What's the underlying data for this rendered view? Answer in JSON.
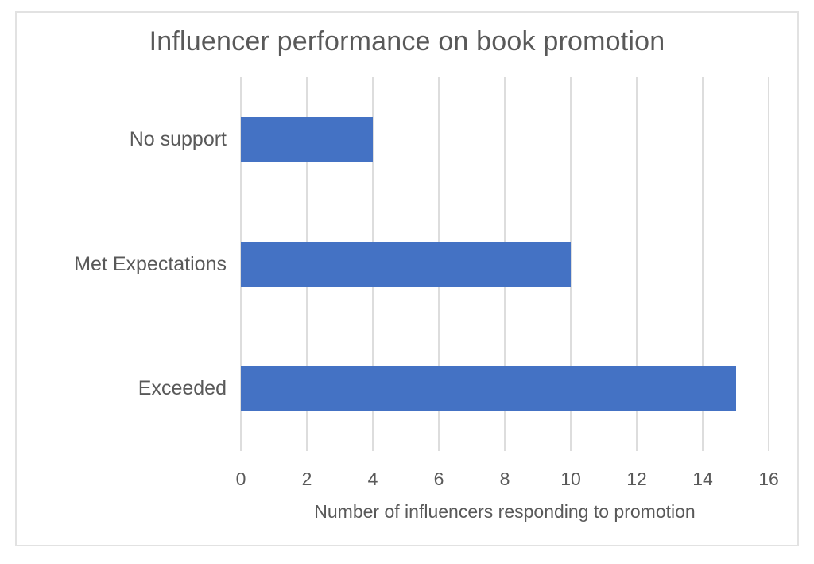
{
  "chart_data": {
    "type": "bar",
    "orientation": "horizontal",
    "title": "Influencer performance on book promotion",
    "categories": [
      "No support",
      "Met Expectations",
      "Exceeded"
    ],
    "values": [
      4,
      10,
      15
    ],
    "xlabel": "Number of influencers responding to promotion",
    "ylabel": "",
    "xlim": [
      0,
      16
    ],
    "xticks": [
      0,
      2,
      4,
      6,
      8,
      10,
      12,
      14,
      16
    ],
    "grid": true,
    "legend": "none",
    "colors": {
      "bar": "#4472C4",
      "gridline": "#DDDDDD",
      "text": "#595959",
      "frame_border": "#E2E2E2",
      "background": "#FFFFFF"
    }
  }
}
